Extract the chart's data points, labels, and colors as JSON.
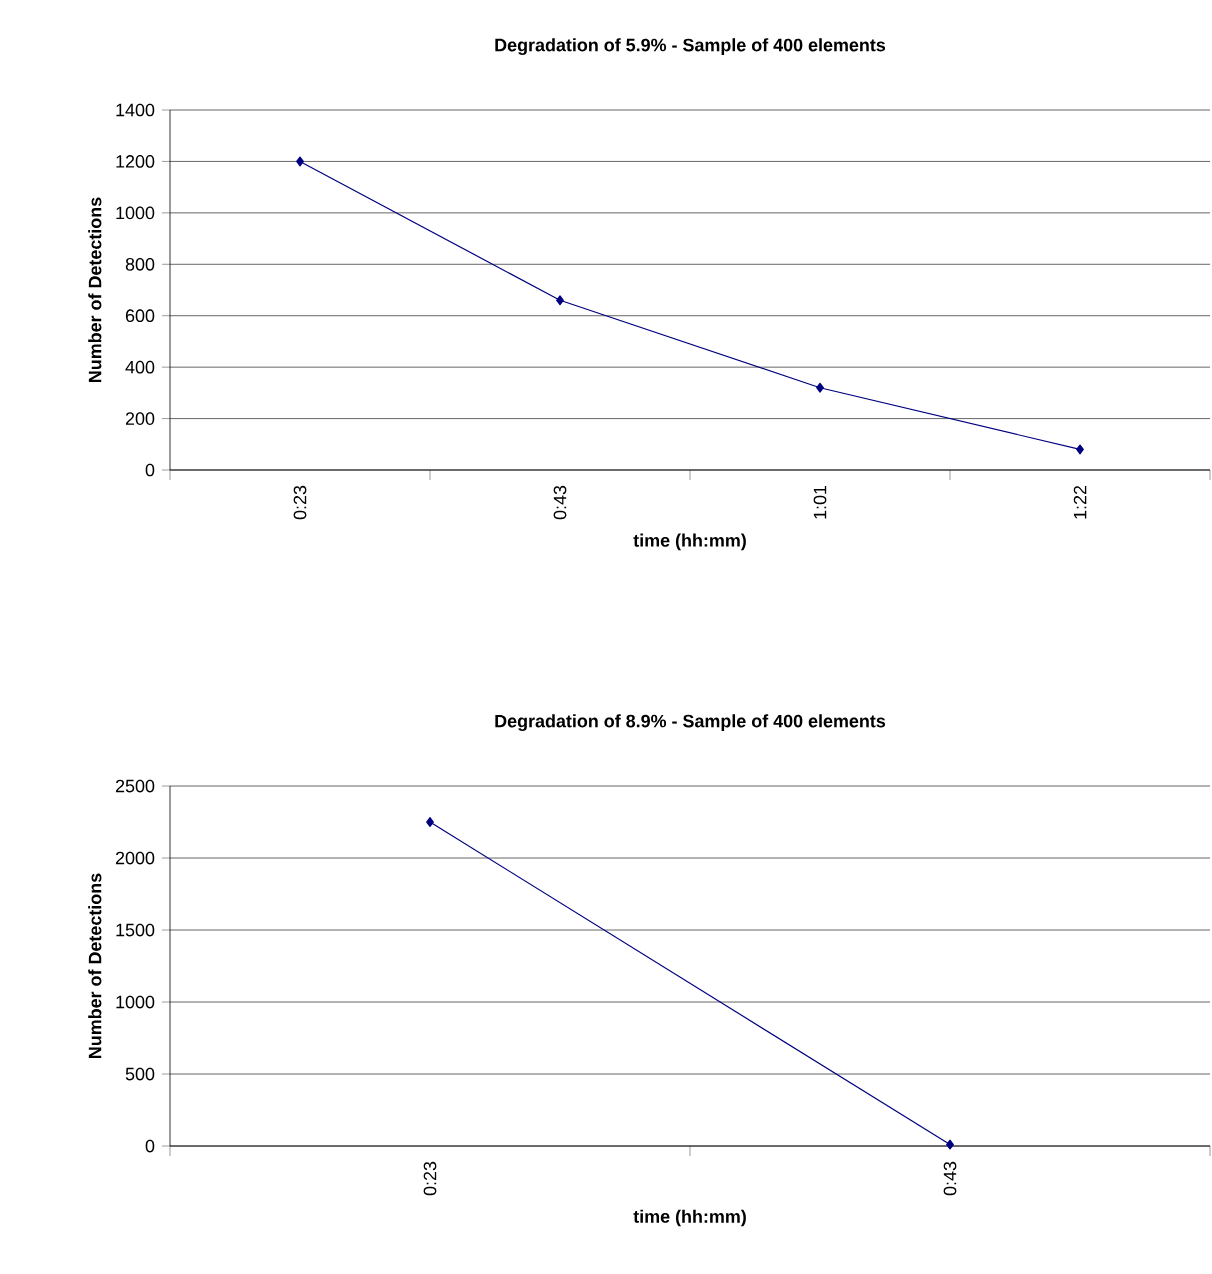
{
  "chart_data": [
    {
      "type": "line",
      "title": "Degradation of 5.9% - Sample of 400 elements",
      "xlabel": "time (hh:mm)",
      "ylabel": "Number of Detections",
      "categories": [
        "0:23",
        "0:43",
        "1:01",
        "1:22"
      ],
      "series": [
        {
          "color": "#000080",
          "values": [
            1200,
            660,
            320,
            80
          ]
        }
      ],
      "ylim": [
        0,
        1400
      ],
      "yticks": [
        0,
        200,
        400,
        600,
        800,
        1000,
        1200,
        1400
      ],
      "grid": "y",
      "marker": "diamond",
      "line_style": "solid"
    },
    {
      "type": "line",
      "title": "Degradation of 8.9% - Sample of 400 elements",
      "xlabel": "time (hh:mm)",
      "ylabel": "Number of Detections",
      "categories": [
        "0:23",
        "0:43"
      ],
      "series": [
        {
          "color": "#000080",
          "values": [
            2250,
            10
          ]
        }
      ],
      "ylim": [
        0,
        2500
      ],
      "yticks": [
        0,
        500,
        1000,
        1500,
        2000,
        2500
      ],
      "grid": "y",
      "marker": "diamond",
      "line_style": "solid"
    }
  ]
}
